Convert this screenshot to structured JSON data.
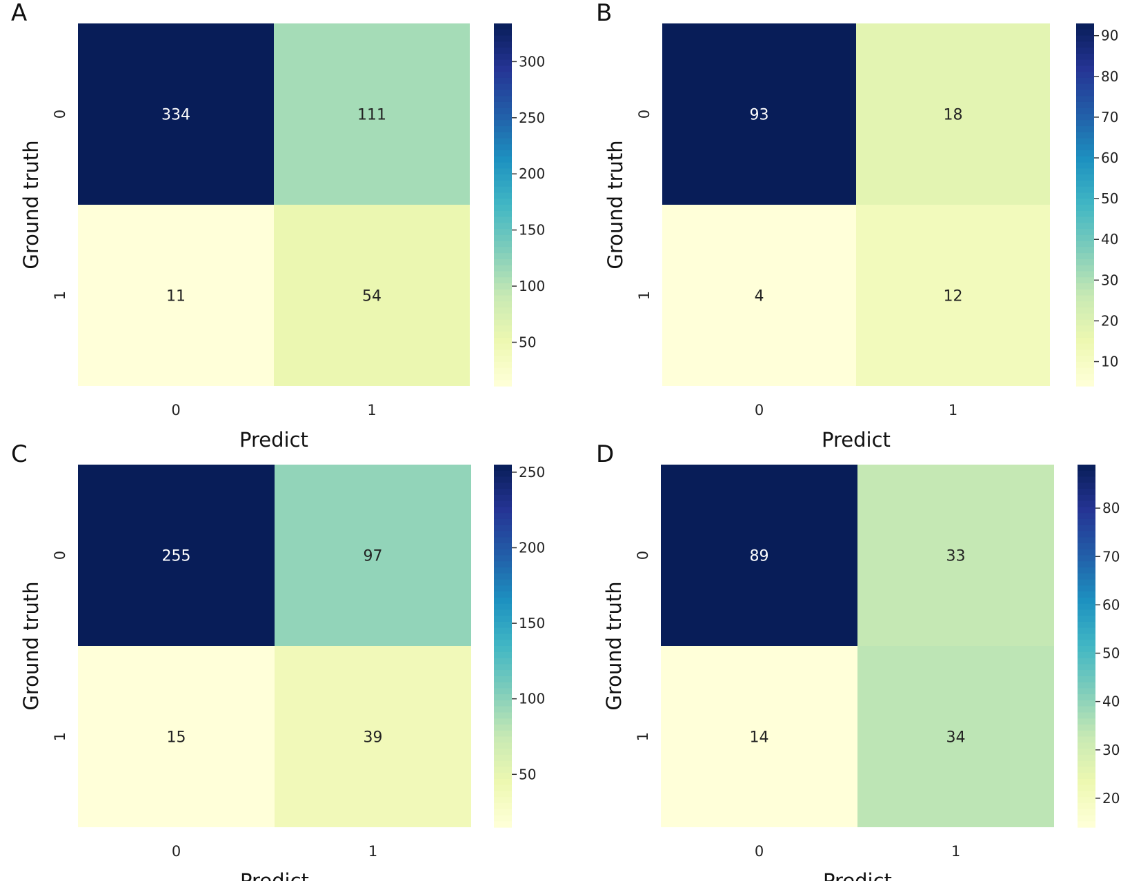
{
  "chart_data": [
    {
      "type": "heatmap",
      "panel_label": "A",
      "xlabel": "Predict",
      "ylabel": "Ground truth",
      "x_categories": [
        "0",
        "1"
      ],
      "y_categories": [
        "0",
        "1"
      ],
      "values": [
        [
          334,
          111
        ],
        [
          11,
          54
        ]
      ],
      "annotations": [
        [
          "334",
          "111"
        ],
        [
          "11",
          "54"
        ]
      ],
      "colorbar": {
        "min": 11,
        "max": 334,
        "ticks": [
          50,
          100,
          150,
          200,
          250,
          300
        ],
        "tick_labels": [
          "50",
          "100",
          "150",
          "200",
          "250",
          "300"
        ]
      }
    },
    {
      "type": "heatmap",
      "panel_label": "B",
      "xlabel": "Predict",
      "ylabel": "Ground truth",
      "x_categories": [
        "0",
        "1"
      ],
      "y_categories": [
        "0",
        "1"
      ],
      "values": [
        [
          93,
          18
        ],
        [
          4,
          12
        ]
      ],
      "annotations": [
        [
          "93",
          "18"
        ],
        [
          "4",
          "12"
        ]
      ],
      "colorbar": {
        "min": 4,
        "max": 93,
        "ticks": [
          10,
          20,
          30,
          40,
          50,
          60,
          70,
          80,
          90
        ],
        "tick_labels": [
          "10",
          "20",
          "30",
          "40",
          "50",
          "60",
          "70",
          "80",
          "90"
        ]
      }
    },
    {
      "type": "heatmap",
      "panel_label": "C",
      "xlabel": "Predict",
      "ylabel": "Ground truth",
      "x_categories": [
        "0",
        "1"
      ],
      "y_categories": [
        "0",
        "1"
      ],
      "values": [
        [
          255,
          97
        ],
        [
          15,
          39
        ]
      ],
      "annotations": [
        [
          "255",
          "97"
        ],
        [
          "15",
          "39"
        ]
      ],
      "colorbar": {
        "min": 15,
        "max": 255,
        "ticks": [
          50,
          100,
          150,
          200,
          250
        ],
        "tick_labels": [
          "50",
          "100",
          "150",
          "200",
          "250"
        ]
      }
    },
    {
      "type": "heatmap",
      "panel_label": "D",
      "xlabel": "Predict",
      "ylabel": "Ground truth",
      "x_categories": [
        "0",
        "1"
      ],
      "y_categories": [
        "0",
        "1"
      ],
      "values": [
        [
          89,
          33
        ],
        [
          14,
          34
        ]
      ],
      "annotations": [
        [
          "89",
          "33"
        ],
        [
          "14",
          "34"
        ]
      ],
      "colorbar": {
        "min": 14,
        "max": 89,
        "ticks": [
          20,
          30,
          40,
          50,
          60,
          70,
          80
        ],
        "tick_labels": [
          "20",
          "30",
          "40",
          "50",
          "60",
          "70",
          "80"
        ]
      }
    }
  ],
  "colormap": {
    "name": "YlGnBu",
    "stops": [
      "#ffffd9",
      "#edf8b1",
      "#c7e9b4",
      "#7fcdbb",
      "#41b6c4",
      "#1d91c0",
      "#225ea8",
      "#253494",
      "#081d58"
    ]
  }
}
